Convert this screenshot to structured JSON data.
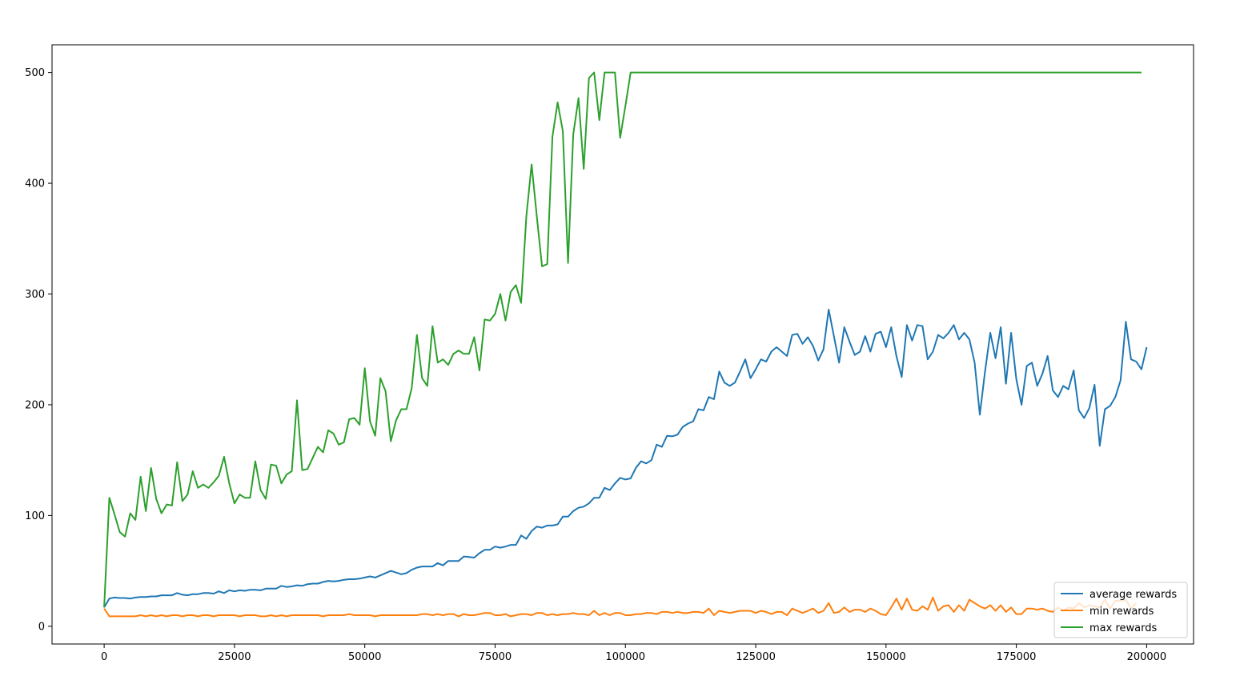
{
  "chart_data": {
    "type": "line",
    "title": "",
    "xlabel": "",
    "ylabel": "",
    "xlim": [
      -10000,
      209000
    ],
    "ylim": [
      -16,
      525
    ],
    "x_ticks": [
      0,
      25000,
      50000,
      75000,
      100000,
      125000,
      150000,
      175000,
      200000
    ],
    "y_ticks": [
      0,
      100,
      200,
      300,
      400,
      500
    ],
    "x_tick_labels": [
      "0",
      "25000",
      "50000",
      "75000",
      "100000",
      "125000",
      "150000",
      "175000",
      "200000"
    ],
    "y_tick_labels": [
      "0",
      "100",
      "200",
      "300",
      "400",
      "500"
    ],
    "grid": false,
    "legend_position": "lower-right",
    "x_start": 0,
    "x_step": 1000,
    "series": [
      {
        "name": "average rewards",
        "color": "#1f77b4",
        "values": [
          17,
          25,
          26,
          25.5,
          25.5,
          25,
          26,
          26.5,
          26.5,
          27,
          27,
          28,
          28,
          28,
          30,
          28.5,
          28,
          29,
          29,
          30,
          30,
          29.5,
          31.5,
          30,
          32.5,
          31.5,
          32.5,
          32,
          33,
          33,
          32.5,
          34,
          34,
          34,
          36.5,
          35.5,
          36,
          37,
          36.5,
          38,
          38.5,
          38.5,
          40,
          41,
          40.5,
          41,
          42,
          42.5,
          42.5,
          43,
          44,
          45,
          44,
          46,
          48,
          50,
          48.5,
          47,
          48,
          51,
          53,
          54,
          54,
          54,
          57,
          55,
          59,
          59,
          59,
          63,
          62.5,
          62,
          66,
          69,
          69,
          72,
          71,
          72,
          73.5,
          73.5,
          82,
          79,
          86,
          90,
          89,
          91,
          91,
          92,
          99,
          99,
          104,
          107,
          108,
          111,
          116,
          116,
          125,
          123,
          129,
          134,
          132.5,
          133.5,
          143,
          149,
          147,
          150,
          164,
          162,
          172,
          171.5,
          173,
          180,
          183,
          185,
          196,
          195,
          207,
          205,
          230,
          220,
          217,
          220,
          230,
          241,
          224,
          232,
          241,
          239,
          248,
          252,
          248,
          244,
          263,
          264,
          255,
          261,
          253,
          240,
          250,
          286,
          262,
          238,
          270,
          257,
          245,
          248,
          262,
          248,
          264,
          266,
          252,
          270,
          244,
          225,
          272,
          258,
          272,
          271,
          241,
          248,
          263,
          260,
          265,
          272,
          259,
          265,
          259,
          238,
          191,
          230,
          265,
          242,
          270,
          219,
          265,
          223,
          200,
          235,
          238,
          217,
          228,
          244,
          213,
          207,
          217,
          214,
          231,
          195,
          188,
          197,
          218,
          163,
          196,
          199,
          207,
          222,
          275,
          241,
          239,
          232,
          252
        ]
      },
      {
        "name": "min rewards",
        "color": "#ff7f0e",
        "values": [
          16,
          9,
          9,
          9,
          9,
          9,
          9,
          10,
          9,
          10,
          9,
          10,
          9,
          10,
          10,
          9,
          10,
          10,
          9,
          10,
          10,
          9,
          10,
          10,
          10,
          10,
          9,
          10,
          10,
          10,
          9,
          9,
          10,
          9,
          10,
          9,
          10,
          10,
          10,
          10,
          10,
          10,
          9,
          10,
          10,
          10,
          10,
          11,
          10,
          10,
          10,
          10,
          9,
          10,
          10,
          10,
          10,
          10,
          10,
          10,
          10,
          11,
          11,
          10,
          11,
          10,
          11,
          11,
          9,
          11,
          10,
          10,
          11,
          12,
          12,
          10,
          10,
          11,
          9,
          10,
          11,
          11,
          10,
          12,
          12,
          10,
          11,
          10,
          11,
          11,
          12,
          11,
          11,
          10,
          14,
          10,
          12,
          10,
          12,
          12,
          10,
          10,
          11,
          11,
          12,
          12,
          11,
          13,
          13,
          12,
          13,
          12,
          12,
          13,
          13,
          12,
          16,
          10,
          14,
          13,
          12,
          13,
          14,
          14,
          14,
          12,
          14,
          13,
          11,
          13,
          13,
          10,
          16,
          14,
          12,
          14,
          16,
          12,
          14,
          21,
          12,
          13,
          17,
          13,
          15,
          15,
          13,
          16,
          14,
          11,
          10,
          17,
          25,
          15,
          25,
          15,
          14,
          18,
          15,
          26,
          14,
          18,
          19,
          13,
          19,
          14,
          24,
          21,
          18,
          16,
          19,
          14,
          19,
          13,
          17,
          11,
          11,
          16,
          16,
          15,
          16,
          14,
          13,
          17,
          14,
          17,
          16,
          21,
          17,
          19,
          18,
          17,
          24,
          16,
          23,
          23,
          24,
          16,
          21
        ]
      },
      {
        "name": "max rewards",
        "color": "#2ca02c",
        "values": [
          17,
          116,
          101,
          85,
          81,
          102,
          96,
          135,
          104,
          143,
          115,
          102,
          110,
          109,
          148,
          113,
          119,
          140,
          125,
          128,
          125,
          130,
          136,
          153,
          129,
          111,
          119,
          116,
          116,
          149,
          123,
          115,
          146,
          145,
          129,
          137,
          140,
          204,
          141,
          142,
          152,
          162,
          157,
          177,
          174,
          164,
          166,
          187,
          188,
          182,
          233,
          185,
          172,
          224,
          212,
          167,
          186,
          196,
          196,
          215,
          263,
          224,
          217,
          271,
          238,
          241,
          236,
          246,
          249,
          246,
          246,
          261,
          231,
          277,
          276,
          282,
          300,
          276,
          302,
          308,
          292,
          370,
          417,
          370,
          325,
          327,
          442,
          473,
          447,
          328,
          444,
          477,
          413,
          495,
          500,
          457,
          500,
          500,
          500,
          441,
          470,
          500,
          500,
          500,
          500,
          500,
          500,
          500,
          500,
          500,
          500,
          500,
          500,
          500,
          500,
          500,
          500,
          500,
          500,
          500,
          500,
          500,
          500,
          500,
          500,
          500,
          500,
          500,
          500,
          500,
          500,
          500,
          500,
          500,
          500,
          500,
          500,
          500,
          500,
          500,
          500,
          500,
          500,
          500,
          500,
          500,
          500,
          500,
          500,
          500,
          500,
          500,
          500,
          500,
          500,
          500,
          500,
          500,
          500,
          500,
          500,
          500,
          500,
          500,
          500,
          500,
          500,
          500,
          500,
          500,
          500,
          500,
          500,
          500,
          500,
          500,
          500,
          500,
          500,
          500,
          500,
          500,
          500,
          500,
          500,
          500,
          500,
          500,
          500,
          500,
          500,
          500,
          500,
          500,
          500,
          500,
          500,
          500,
          500,
          500
        ]
      }
    ]
  }
}
